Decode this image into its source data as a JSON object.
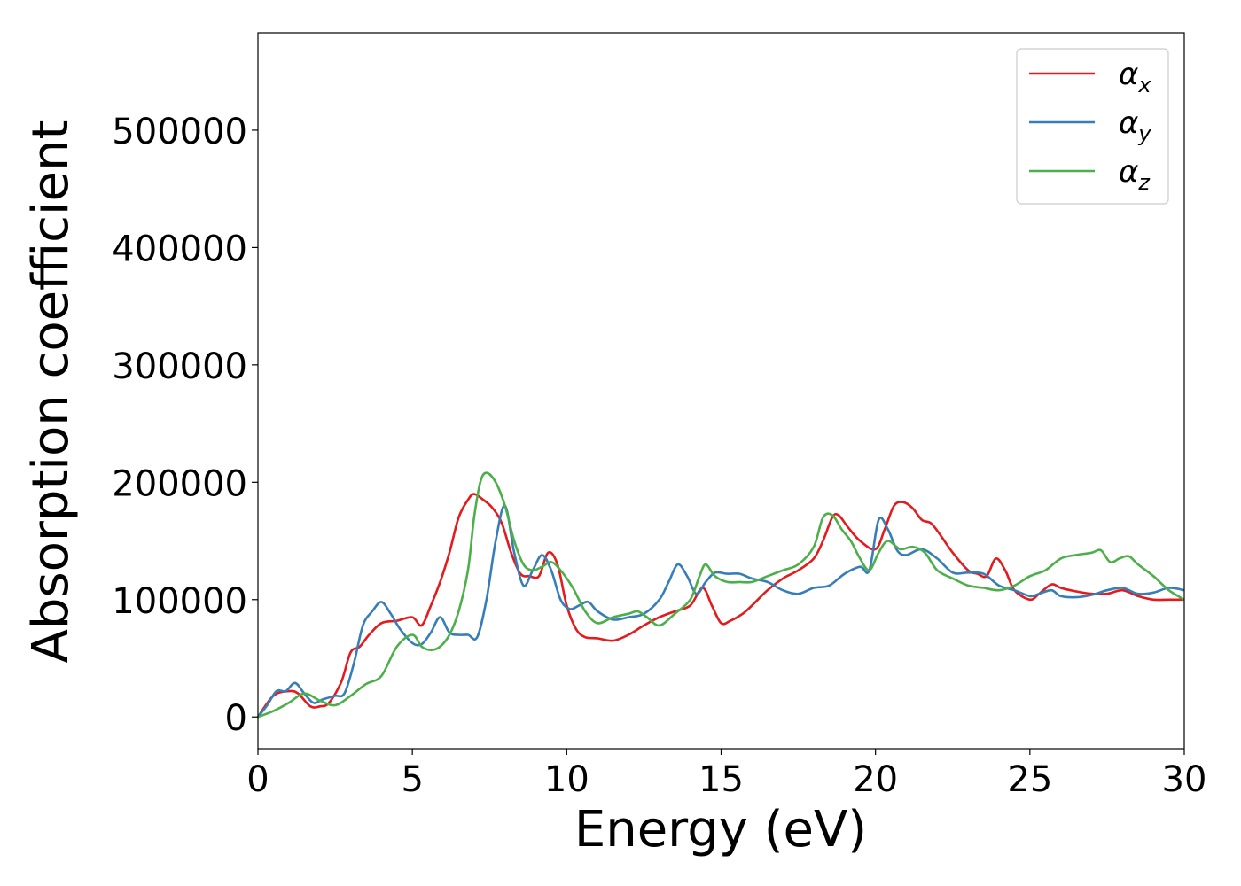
{
  "chart_data": {
    "type": "line",
    "title": "",
    "xlabel": "Energy (eV)",
    "ylabel": "Absorption coefficient",
    "xlim": [
      0,
      30
    ],
    "ylim": [
      -27000,
      583000
    ],
    "xticks": [
      0,
      5,
      10,
      15,
      20,
      25,
      30
    ],
    "yticks": [
      0,
      100000,
      200000,
      300000,
      400000,
      500000
    ],
    "grid": false,
    "legend_position": "top-right",
    "series": [
      {
        "name": "α_x",
        "legend_main": "α",
        "legend_sub": "x",
        "color": "#e41a1c",
        "x": [
          0,
          0.5,
          1.0,
          1.3,
          1.7,
          2.0,
          2.3,
          2.7,
          3.0,
          3.3,
          3.6,
          4.0,
          4.5,
          5.0,
          5.3,
          5.6,
          5.9,
          6.2,
          6.5,
          6.8,
          7.0,
          7.3,
          7.6,
          7.9,
          8.2,
          8.5,
          8.8,
          9.1,
          9.4,
          9.7,
          10.0,
          10.3,
          10.6,
          11.0,
          11.5,
          12.0,
          12.5,
          13.0,
          13.5,
          14.0,
          14.4,
          14.7,
          15.0,
          15.3,
          15.7,
          16.0,
          16.5,
          17.0,
          17.5,
          18.0,
          18.3,
          18.6,
          18.8,
          19.1,
          19.5,
          20.0,
          20.3,
          20.6,
          20.9,
          21.2,
          21.5,
          21.8,
          22.1,
          22.5,
          23.0,
          23.3,
          23.6,
          23.9,
          24.2,
          24.5,
          25.0,
          25.3,
          25.7,
          26.0,
          26.5,
          27.0,
          27.5,
          28.0,
          28.5,
          29.0,
          29.5,
          30.0
        ],
        "y": [
          0,
          18000,
          22000,
          20000,
          9000,
          9000,
          12000,
          30000,
          55000,
          60000,
          70000,
          80000,
          82000,
          85000,
          78000,
          95000,
          115000,
          140000,
          170000,
          185000,
          190000,
          185000,
          178000,
          165000,
          140000,
          122000,
          120000,
          120000,
          140000,
          130000,
          95000,
          75000,
          68000,
          67000,
          65000,
          70000,
          78000,
          85000,
          90000,
          95000,
          110000,
          95000,
          80000,
          82000,
          88000,
          95000,
          108000,
          118000,
          125000,
          135000,
          150000,
          170000,
          172000,
          162000,
          150000,
          143000,
          160000,
          180000,
          183000,
          178000,
          168000,
          165000,
          155000,
          140000,
          125000,
          122000,
          120000,
          135000,
          125000,
          108000,
          100000,
          105000,
          113000,
          110000,
          107000,
          105000,
          105000,
          108000,
          103000,
          100000,
          100000,
          100000
        ]
      },
      {
        "name": "α_y",
        "legend_main": "α",
        "legend_sub": "y",
        "color": "#377eb8",
        "x": [
          0,
          0.3,
          0.6,
          0.9,
          1.2,
          1.5,
          1.8,
          2.1,
          2.5,
          2.8,
          3.1,
          3.4,
          3.7,
          4.0,
          4.3,
          4.6,
          5.0,
          5.3,
          5.6,
          5.9,
          6.2,
          6.5,
          6.8,
          7.1,
          7.4,
          7.7,
          8.0,
          8.3,
          8.6,
          8.9,
          9.2,
          9.5,
          9.8,
          10.1,
          10.4,
          10.7,
          11.0,
          11.5,
          12.0,
          12.5,
          13.0,
          13.3,
          13.6,
          13.9,
          14.2,
          14.5,
          14.8,
          15.2,
          15.6,
          16.0,
          16.5,
          17.0,
          17.5,
          18.0,
          18.5,
          19.0,
          19.5,
          19.8,
          20.1,
          20.4,
          20.7,
          21.0,
          21.5,
          22.0,
          22.5,
          23.0,
          23.5,
          24.0,
          24.5,
          25.0,
          25.3,
          25.7,
          26.0,
          26.5,
          27.0,
          27.5,
          28.0,
          28.5,
          29.0,
          29.5,
          30.0
        ],
        "y": [
          0,
          10000,
          22000,
          22000,
          29000,
          20000,
          12000,
          15000,
          18000,
          20000,
          45000,
          78000,
          90000,
          98000,
          88000,
          75000,
          63000,
          62000,
          72000,
          85000,
          72000,
          70000,
          70000,
          68000,
          100000,
          150000,
          180000,
          140000,
          112000,
          125000,
          138000,
          125000,
          100000,
          92000,
          95000,
          98000,
          90000,
          83000,
          85000,
          88000,
          100000,
          115000,
          130000,
          120000,
          105000,
          115000,
          123000,
          122000,
          122000,
          118000,
          115000,
          108000,
          105000,
          110000,
          112000,
          122000,
          128000,
          125000,
          168000,
          160000,
          142000,
          138000,
          143000,
          135000,
          123000,
          123000,
          122000,
          112000,
          108000,
          103000,
          105000,
          108000,
          103000,
          102000,
          104000,
          108000,
          110000,
          105000,
          106000,
          110000,
          108000
        ]
      },
      {
        "name": "α_z",
        "legend_main": "α",
        "legend_sub": "z",
        "color": "#4daf4a",
        "x": [
          0,
          0.5,
          1.0,
          1.5,
          2.0,
          2.5,
          3.0,
          3.5,
          4.0,
          4.5,
          5.0,
          5.3,
          5.6,
          5.9,
          6.2,
          6.5,
          6.8,
          7.0,
          7.2,
          7.4,
          7.7,
          8.0,
          8.3,
          8.6,
          8.9,
          9.2,
          9.5,
          9.8,
          10.2,
          10.6,
          11.0,
          11.5,
          12.0,
          12.3,
          12.6,
          13.0,
          13.5,
          14.0,
          14.3,
          14.5,
          14.8,
          15.2,
          15.6,
          16.0,
          16.5,
          17.0,
          17.5,
          18.0,
          18.3,
          18.6,
          18.9,
          19.2,
          19.5,
          19.8,
          20.1,
          20.4,
          20.8,
          21.2,
          21.6,
          22.0,
          22.5,
          23.0,
          23.5,
          24.0,
          24.5,
          25.0,
          25.5,
          26.0,
          26.5,
          27.0,
          27.3,
          27.6,
          27.9,
          28.2,
          28.5,
          29.0,
          29.5,
          30.0
        ],
        "y": [
          0,
          5000,
          12000,
          20000,
          14000,
          10000,
          18000,
          28000,
          35000,
          60000,
          70000,
          60000,
          57000,
          60000,
          70000,
          90000,
          125000,
          170000,
          200000,
          208000,
          200000,
          180000,
          150000,
          130000,
          125000,
          128000,
          132000,
          125000,
          110000,
          90000,
          80000,
          85000,
          88000,
          90000,
          85000,
          78000,
          88000,
          100000,
          120000,
          130000,
          120000,
          115000,
          115000,
          115000,
          120000,
          125000,
          130000,
          145000,
          170000,
          172000,
          160000,
          150000,
          135000,
          125000,
          140000,
          150000,
          143000,
          145000,
          140000,
          125000,
          118000,
          112000,
          110000,
          108000,
          112000,
          120000,
          125000,
          135000,
          138000,
          140000,
          142000,
          132000,
          135000,
          137000,
          130000,
          120000,
          108000,
          100000
        ]
      }
    ]
  }
}
